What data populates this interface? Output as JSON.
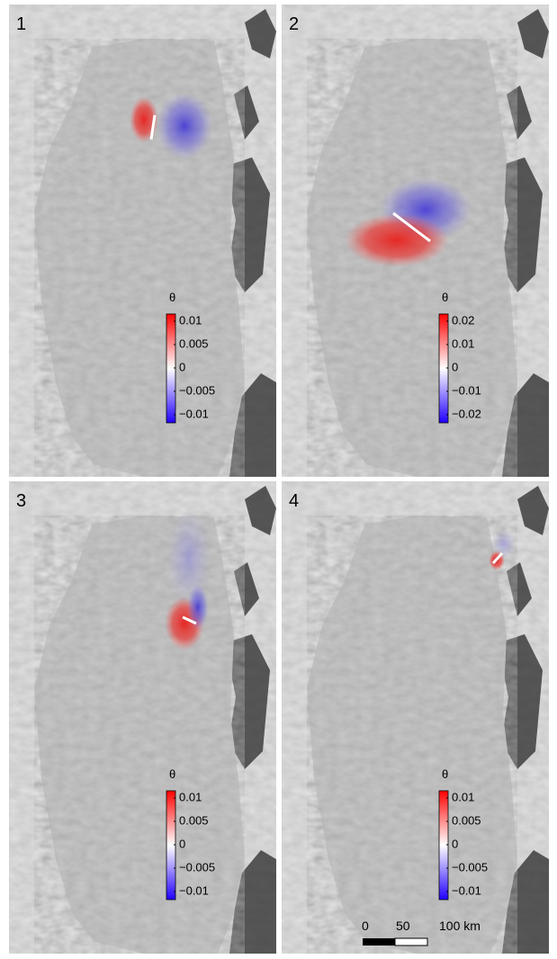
{
  "panels": [
    {
      "label": "1",
      "colorbar": {
        "title": "θ",
        "ticks": [
          "0.01",
          "0.005",
          "0",
          "−0.005",
          "−0.01"
        ]
      }
    },
    {
      "label": "2",
      "colorbar": {
        "title": "θ",
        "ticks": [
          "0.02",
          "0.01",
          "0",
          "−0.01",
          "−0.02"
        ]
      }
    },
    {
      "label": "3",
      "colorbar": {
        "title": "θ",
        "ticks": [
          "0.01",
          "0.005",
          "0",
          "−0.005",
          "−0.01"
        ]
      }
    },
    {
      "label": "4",
      "colorbar": {
        "title": "θ",
        "ticks": [
          "0.01",
          "0.005",
          "0",
          "−0.005",
          "−0.01"
        ]
      }
    }
  ],
  "scale_bar": {
    "labels": [
      "0",
      "50",
      "100 km"
    ]
  }
}
